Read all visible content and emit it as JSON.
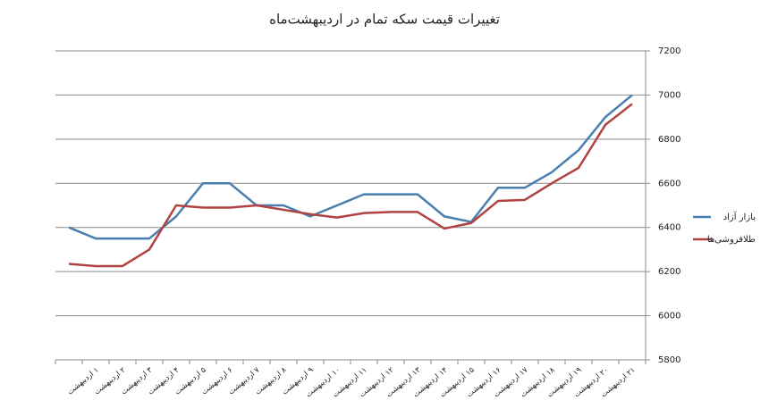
{
  "chart_data": {
    "type": "line",
    "title": "تغییرات قیمت سکه تمام در اردیبهشت‌ماه",
    "categories": [
      null,
      "۱ اردیبهشت",
      "۲ اردیبهشت",
      "۳ اردیبهشت",
      "۴ اردیبهشت",
      "۵ اردیبهشت",
      "۶ اردیبهشت",
      "۷ اردیبهشت",
      "۸ اردیبهشت",
      "۹ اردیبهشت",
      "۱۰ اردیبهشت",
      "۱۱ اردیبهشت",
      "۱۲ اردیبهشت",
      "۱۳ اردیبهشت",
      "۱۴ اردیبهشت",
      "۱۵ اردیبهشت",
      "۱۶ اردیبهشت",
      "۱۷ اردیبهشت",
      "۱۸ اردیبهشت",
      "۱۹ اردیبهشت",
      "۲۰ اردیبهشت",
      "۲۱ اردیبهشت"
    ],
    "series": [
      {
        "name": "بازار آزاد",
        "color": "#4a7eb0",
        "values": [
          6400,
          6350,
          6350,
          6350,
          6450,
          6600,
          6600,
          6500,
          6500,
          6450,
          6500,
          6550,
          6550,
          6550,
          6450,
          6425,
          6580,
          6580,
          6650,
          6750,
          6900,
          7000
        ]
      },
      {
        "name": "طلافروشی‌ها",
        "color": "#b04342",
        "values": [
          6235,
          6225,
          6225,
          6300,
          6500,
          6490,
          6490,
          6500,
          6480,
          6460,
          6445,
          6465,
          6470,
          6470,
          6395,
          6420,
          6520,
          6525,
          6600,
          6670,
          6865,
          6960
        ]
      }
    ],
    "ylim": [
      5800,
      7200
    ],
    "yticks": [
      5800,
      6000,
      6200,
      6400,
      6600,
      6800,
      7000,
      7200
    ],
    "grid": true,
    "legend": "right"
  }
}
